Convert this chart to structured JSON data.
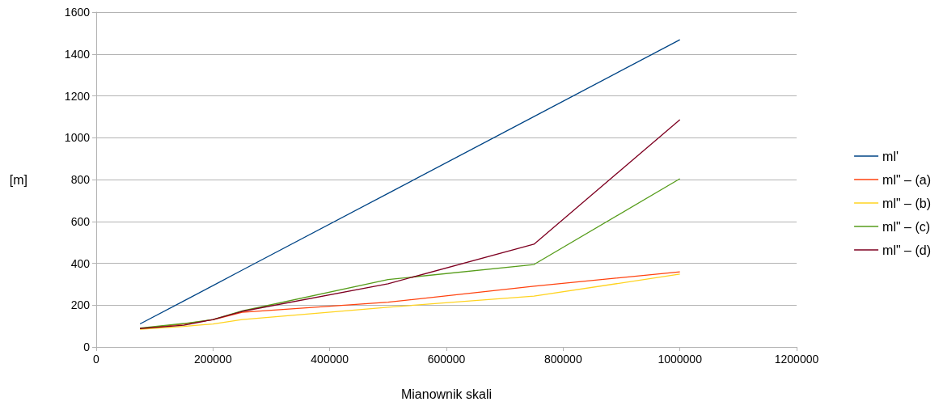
{
  "chart_data": {
    "type": "line",
    "xlabel": "Mianownik skali",
    "ylabel": "[m]",
    "x": [
      75000,
      150000,
      200000,
      250000,
      500000,
      750000,
      1000000
    ],
    "series": [
      {
        "name": "ml'",
        "color": "#004586",
        "values": [
          110,
          220,
          293,
          367,
          734,
          1101,
          1468
        ]
      },
      {
        "name": "ml\" – (a)",
        "color": "#ff420e",
        "values": [
          88,
          110,
          130,
          166,
          214,
          290,
          359
        ]
      },
      {
        "name": "ml\" – (b)",
        "color": "#ffd320",
        "values": [
          85,
          98,
          110,
          131,
          190,
          243,
          348
        ]
      },
      {
        "name": "ml\" – (c)",
        "color": "#579d1c",
        "values": [
          90,
          112,
          131,
          172,
          322,
          394,
          804
        ]
      },
      {
        "name": "ml\" – (d)",
        "color": "#7e0021",
        "values": [
          88,
          104,
          131,
          170,
          302,
          491,
          1086
        ]
      }
    ],
    "xlim": [
      0,
      1200000
    ],
    "xticks": [
      0,
      200000,
      400000,
      600000,
      800000,
      1000000,
      1200000
    ],
    "ylim": [
      0,
      1600
    ],
    "yticks": [
      0,
      200,
      400,
      600,
      800,
      1000,
      1200,
      1400,
      1600
    ],
    "grid": "y",
    "legend": "right",
    "marker": "none",
    "line_style": "solid"
  }
}
